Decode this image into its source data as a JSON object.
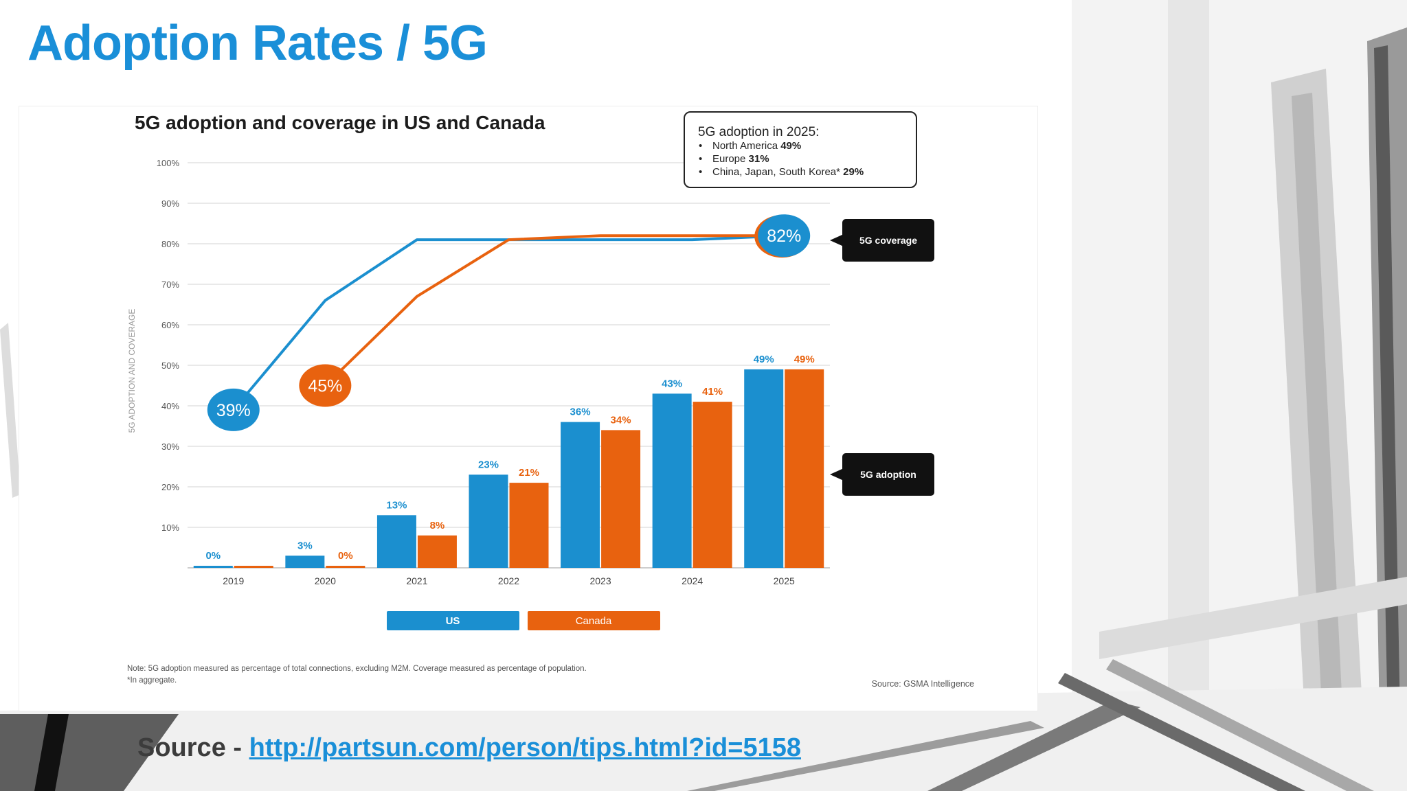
{
  "slide": {
    "title": "Adoption Rates / 5G",
    "source_label": "Source - ",
    "source_url": "http://partsun.com/person/tips.html?id=5158"
  },
  "colors": {
    "us": "#1b8fcf",
    "canada": "#e8620f",
    "title": "#1a8fd8",
    "callout": "#111111"
  },
  "chart_data": {
    "type": "bar",
    "title": "5G adoption and coverage in US and Canada",
    "ylabel": "5G ADOPTION AND COVERAGE",
    "xlabel": "",
    "ylim": [
      0,
      100
    ],
    "yticks": [
      "100%",
      "90%",
      "80%",
      "70%",
      "60%",
      "50%",
      "40%",
      "30%",
      "20%",
      "10%"
    ],
    "categories": [
      "2019",
      "2020",
      "2021",
      "2022",
      "2023",
      "2024",
      "2025"
    ],
    "series": [
      {
        "name": "US",
        "values": [
          0,
          3,
          13,
          23,
          36,
          43,
          49
        ],
        "labels": [
          "0%",
          "3%",
          "13%",
          "23%",
          "36%",
          "43%",
          "49%"
        ]
      },
      {
        "name": "Canada",
        "values": [
          0,
          0,
          8,
          21,
          34,
          41,
          49
        ],
        "labels": [
          "",
          "0%",
          "8%",
          "21%",
          "34%",
          "41%",
          "49%"
        ]
      }
    ],
    "coverage_lines": [
      {
        "name": "US",
        "x": [
          2019,
          2020,
          2021,
          2022,
          2023,
          2024,
          2025
        ],
        "y": [
          39,
          66,
          81,
          81,
          81,
          81,
          82
        ]
      },
      {
        "name": "Canada",
        "x": [
          2020,
          2021,
          2022,
          2023,
          2024,
          2025
        ],
        "y": [
          45,
          67,
          81,
          82,
          82,
          82
        ]
      }
    ],
    "bubbles": [
      {
        "label": "39%",
        "series": "US",
        "at": "2019"
      },
      {
        "label": "45%",
        "series": "Canada",
        "at": "2020"
      },
      {
        "label": "82%",
        "series": "US",
        "at": "2025"
      }
    ],
    "callouts": {
      "coverage": "5G coverage",
      "adoption": "5G adoption"
    },
    "legend": {
      "placement": "bottom",
      "items": [
        "US",
        "Canada"
      ]
    },
    "infobox": {
      "title": "5G adoption in 2025:",
      "items": [
        {
          "label": "North America ",
          "value": "49%"
        },
        {
          "label": "Europe ",
          "value": "31%"
        },
        {
          "label": "China, Japan, South Korea* ",
          "value": "29%"
        }
      ]
    },
    "note_line1": "Note: 5G adoption measured as percentage of total connections, excluding M2M. Coverage measured as percentage of population.",
    "note_line2": "*In aggregate.",
    "source": "Source: GSMA Intelligence",
    "grid": true
  }
}
